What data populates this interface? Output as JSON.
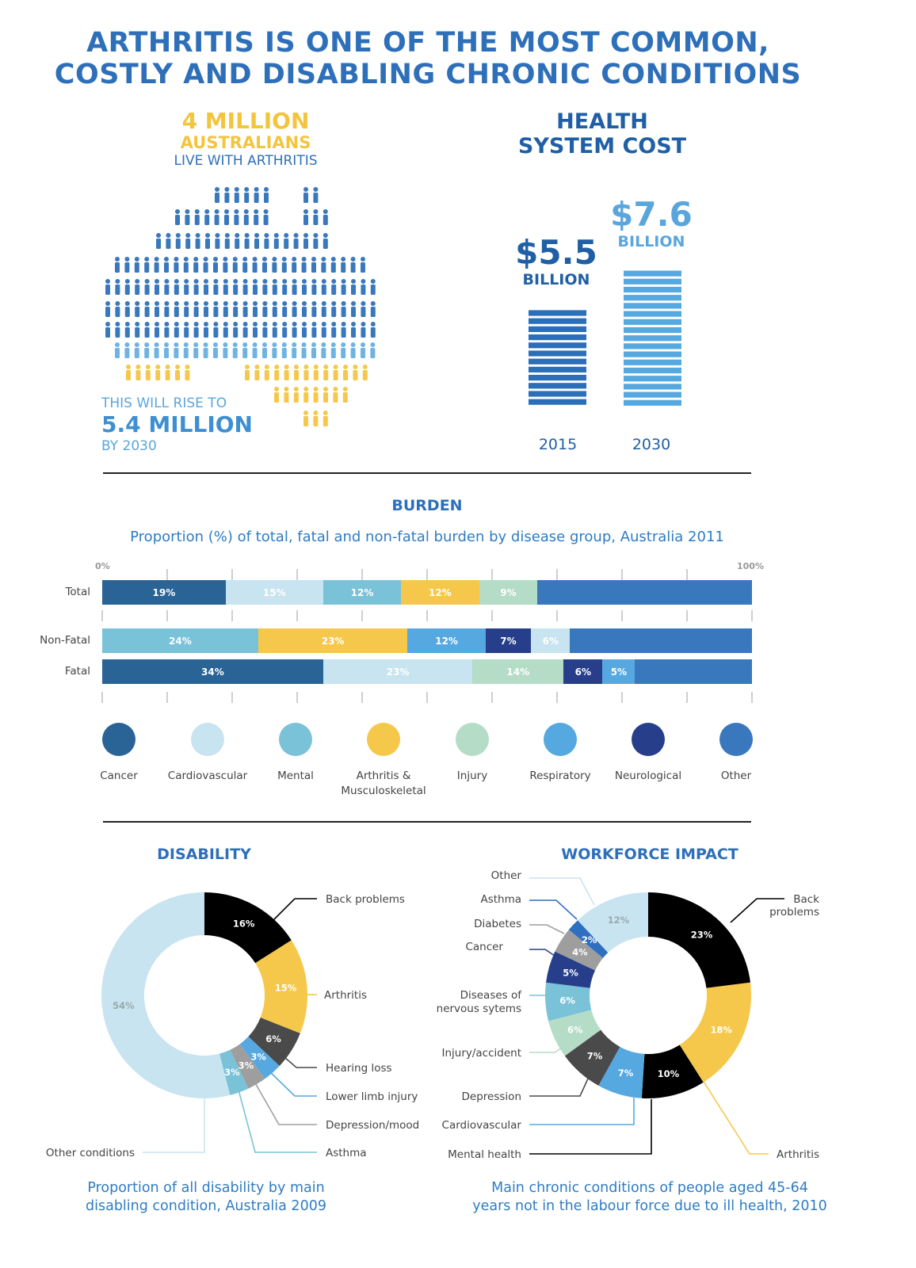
{
  "header": {
    "title_line1": "ARTHRITIS IS ONE OF THE MOST COMMON,",
    "title_line2": "COSTLY AND DISABLING CHRONIC CONDITIONS"
  },
  "prevalence": {
    "big": "4 MILLION",
    "sub": "AUSTRALIANS",
    "caption": "LIVE WITH ARTHRITIS",
    "rise_prefix": "THIS WILL RISE TO",
    "rise_value": "5.4 MILLION",
    "rise_suffix": "BY 2030"
  },
  "cost": {
    "title_line1": "HEALTH",
    "title_line2": "SYSTEM COST",
    "bars": [
      {
        "year": "2015",
        "value_text": "$5.5",
        "unit": "BILLION",
        "value": 5.5
      },
      {
        "year": "2030",
        "value_text": "$7.6",
        "unit": "BILLION",
        "value": 7.6
      }
    ]
  },
  "burden": {
    "title": "BURDEN",
    "subtitle": "Proportion (%) of total, fatal and non-fatal burden by disease group, Australia 2011",
    "axis_start": "0%",
    "axis_end": "100%"
  },
  "disability": {
    "title": "DISABILITY",
    "caption_line1": "Proportion of all disability by main",
    "caption_line2": "disabling condition, Australia 2009"
  },
  "workforce": {
    "title": "WORKFORCE IMPACT",
    "caption_line1": "Main chronic conditions of people aged 45-64",
    "caption_line2": "years not in the labour force due to ill health, 2010"
  },
  "colors": {
    "cancer": "#2a6496",
    "cardiovascular": "#c8e4f0",
    "mental": "#7ac2d8",
    "arthritis": "#f5c84b",
    "injury": "#b5dcc6",
    "respiratory": "#56a8e0",
    "neurological": "#273f8a",
    "other": "#3a78bd",
    "black": "#000000",
    "darkgray": "#4a4a4a",
    "gray": "#9e9e9e"
  },
  "chart_data": [
    {
      "type": "bar",
      "title": "BURDEN",
      "subtitle": "Proportion (%) of total, fatal and non-fatal burden by disease group, Australia 2011",
      "orientation": "horizontal-stacked",
      "categories": [
        "Total",
        "Non-Fatal",
        "Fatal"
      ],
      "legend": [
        "Cancer",
        "Cardiovascular",
        "Mental",
        "Arthritis & Musculoskeletal",
        "Injury",
        "Respiratory",
        "Neurological",
        "Other"
      ],
      "xlim": [
        0,
        100
      ],
      "rows": [
        {
          "name": "Total",
          "segments": [
            {
              "group": "Cancer",
              "value": 19,
              "label": "19%"
            },
            {
              "group": "Cardiovascular",
              "value": 15,
              "label": "15%"
            },
            {
              "group": "Mental",
              "value": 12,
              "label": "12%"
            },
            {
              "group": "Arthritis & Musculoskeletal",
              "value": 12,
              "label": "12%"
            },
            {
              "group": "Injury",
              "value": 9,
              "label": "9%"
            },
            {
              "group": "Other",
              "value": 33,
              "label": ""
            }
          ]
        },
        {
          "name": "Non-Fatal",
          "segments": [
            {
              "group": "Mental",
              "value": 24,
              "label": "24%"
            },
            {
              "group": "Arthritis & Musculoskeletal",
              "value": 23,
              "label": "23%"
            },
            {
              "group": "Respiratory",
              "value": 12,
              "label": "12%"
            },
            {
              "group": "Neurological",
              "value": 7,
              "label": "7%"
            },
            {
              "group": "Cardiovascular",
              "value": 6,
              "label": "6%"
            },
            {
              "group": "Other",
              "value": 28,
              "label": ""
            }
          ]
        },
        {
          "name": "Fatal",
          "segments": [
            {
              "group": "Cancer",
              "value": 34,
              "label": "34%"
            },
            {
              "group": "Cardiovascular",
              "value": 23,
              "label": "23%"
            },
            {
              "group": "Injury",
              "value": 14,
              "label": "14%"
            },
            {
              "group": "Neurological",
              "value": 6,
              "label": "6%"
            },
            {
              "group": "Respiratory",
              "value": 5,
              "label": "5%"
            },
            {
              "group": "Other",
              "value": 18,
              "label": ""
            }
          ]
        }
      ]
    },
    {
      "type": "pie",
      "title": "DISABILITY",
      "caption": "Proportion of all disability by main disabling condition, Australia 2009",
      "slices": [
        {
          "name": "Back problems",
          "value": 16,
          "label": "16%"
        },
        {
          "name": "Arthritis",
          "value": 15,
          "label": "15%"
        },
        {
          "name": "Hearing loss",
          "value": 6,
          "label": "6%"
        },
        {
          "name": "Lower limb injury",
          "value": 3,
          "label": "3%"
        },
        {
          "name": "Depression/mood",
          "value": 3,
          "label": "3%"
        },
        {
          "name": "Asthma",
          "value": 3,
          "label": "3%"
        },
        {
          "name": "Other conditions",
          "value": 54,
          "label": "54%"
        }
      ]
    },
    {
      "type": "pie",
      "title": "WORKFORCE IMPACT",
      "caption": "Main chronic conditions of people aged 45-64 years not in the labour force due to ill health, 2010",
      "slices": [
        {
          "name": "Back problems",
          "value": 23,
          "label": "23%"
        },
        {
          "name": "Arthritis",
          "value": 18,
          "label": "18%"
        },
        {
          "name": "Mental health",
          "value": 10,
          "label": "10%"
        },
        {
          "name": "Cardiovascular",
          "value": 7,
          "label": "7%"
        },
        {
          "name": "Depression",
          "value": 7,
          "label": "7%"
        },
        {
          "name": "Injury/accident",
          "value": 6,
          "label": "6%"
        },
        {
          "name": "Diseases of nervous sytems",
          "value": 6,
          "label": "6%"
        },
        {
          "name": "Cancer",
          "value": 5,
          "label": "5%"
        },
        {
          "name": "Diabetes",
          "value": 4,
          "label": "4%"
        },
        {
          "name": "Asthma",
          "value": 2,
          "label": "2%"
        },
        {
          "name": "Other",
          "value": 12,
          "label": "12%"
        }
      ]
    },
    {
      "type": "bar",
      "title": "HEALTH SYSTEM COST",
      "categories": [
        "2015",
        "2030"
      ],
      "values": [
        5.5,
        7.6
      ],
      "value_labels": [
        "$5.5 BILLION",
        "$7.6 BILLION"
      ]
    }
  ]
}
